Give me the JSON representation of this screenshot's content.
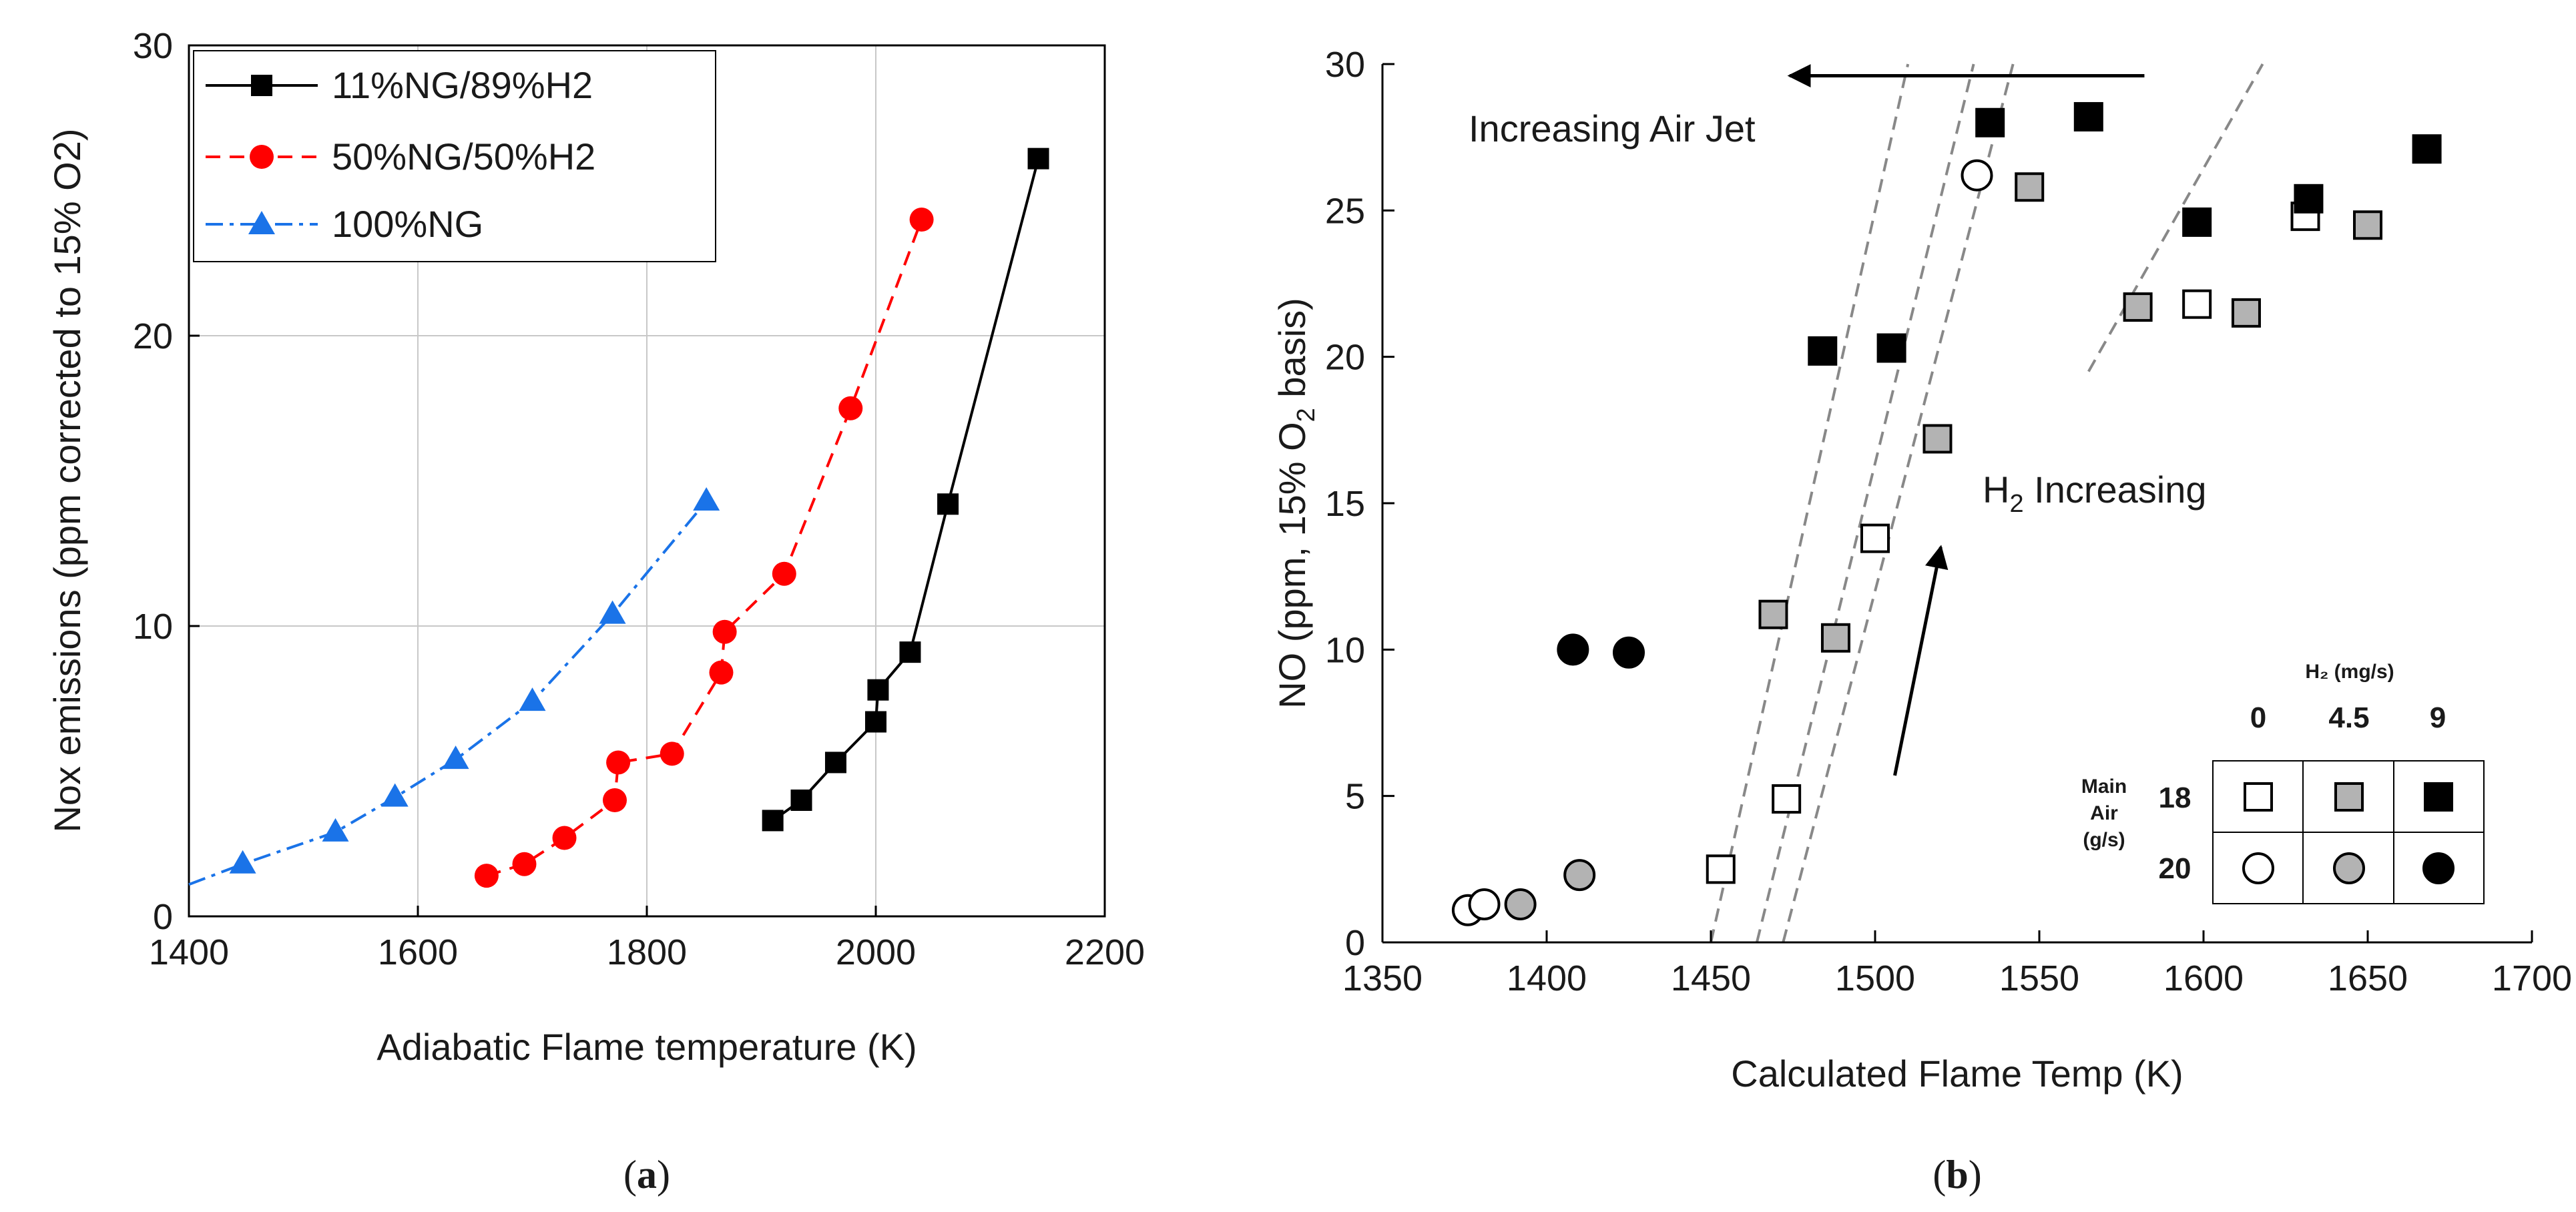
{
  "chart_data": [
    {
      "type": "line",
      "panel": "(a)",
      "xlabel": "Adiabatic Flame temperature (K)",
      "ylabel": "Nox emissions (ppm corrected to 15% O2)",
      "xlim": [
        1400,
        2200
      ],
      "ylim": [
        0,
        30
      ],
      "xticks": [
        1400,
        1600,
        1800,
        2000,
        2200
      ],
      "yticks": [
        0,
        10,
        20,
        30
      ],
      "grid": true,
      "legend_position": "top-left",
      "series": [
        {
          "name": "11%NG/89%H2",
          "color": "#000000",
          "marker": "square",
          "line": "solid",
          "points": [
            [
              1910,
              3.3
            ],
            [
              1935,
              4.0
            ],
            [
              1965,
              5.3
            ],
            [
              2000,
              6.7
            ],
            [
              2002,
              7.8
            ],
            [
              2030,
              9.1
            ],
            [
              2063,
              14.2
            ],
            [
              2142,
              26.1
            ]
          ]
        },
        {
          "name": "50%NG/50%H2",
          "color": "#ff0000",
          "marker": "circle",
          "line": "dashed",
          "points": [
            [
              1660,
              1.4
            ],
            [
              1693,
              1.8
            ],
            [
              1728,
              2.7
            ],
            [
              1772,
              4.0
            ],
            [
              1775,
              5.3
            ],
            [
              1822,
              5.6
            ],
            [
              1865,
              8.4
            ],
            [
              1868,
              9.8
            ],
            [
              1920,
              11.8
            ],
            [
              1978,
              17.5
            ],
            [
              2040,
              24.0
            ]
          ]
        },
        {
          "name": "100%NG",
          "color": "#1a73e8",
          "marker": "triangle",
          "line": "dashdot",
          "curve_start": [
            1400,
            1.1
          ],
          "points": [
            [
              1447,
              1.8
            ],
            [
              1528,
              2.9
            ],
            [
              1580,
              4.1
            ],
            [
              1633,
              5.4
            ],
            [
              1700,
              7.4
            ],
            [
              1770,
              10.4
            ],
            [
              1852,
              14.3
            ]
          ]
        }
      ]
    },
    {
      "type": "scatter",
      "panel": "(b)",
      "xlabel": "Calculated Flame Temp (K)",
      "ylabel_main": "NO (ppm, 15% O",
      "ylabel_sub": "2",
      "ylabel_tail": " basis)",
      "xlim": [
        1350,
        1700
      ],
      "ylim": [
        0,
        30
      ],
      "xticks": [
        1350,
        1400,
        1450,
        1500,
        1550,
        1600,
        1650,
        1700
      ],
      "yticks": [
        0,
        5,
        10,
        15,
        20,
        25,
        30
      ],
      "grid": false,
      "points": [
        {
          "x": 1376,
          "y": 1.1,
          "marker": "circle",
          "fill": "white"
        },
        {
          "x": 1381,
          "y": 1.3,
          "marker": "circle",
          "fill": "white"
        },
        {
          "x": 1392,
          "y": 1.3,
          "marker": "circle",
          "fill": "gray"
        },
        {
          "x": 1410,
          "y": 2.3,
          "marker": "circle",
          "fill": "gray"
        },
        {
          "x": 1408,
          "y": 10.0,
          "marker": "circle",
          "fill": "black"
        },
        {
          "x": 1425,
          "y": 9.9,
          "marker": "circle",
          "fill": "black"
        },
        {
          "x": 1531,
          "y": 26.2,
          "marker": "circle",
          "fill": "white"
        },
        {
          "x": 1453,
          "y": 2.5,
          "marker": "square",
          "fill": "white"
        },
        {
          "x": 1473,
          "y": 4.9,
          "marker": "square",
          "fill": "white"
        },
        {
          "x": 1500,
          "y": 13.8,
          "marker": "square",
          "fill": "white"
        },
        {
          "x": 1598,
          "y": 21.8,
          "marker": "square",
          "fill": "white"
        },
        {
          "x": 1631,
          "y": 24.8,
          "marker": "square",
          "fill": "white"
        },
        {
          "x": 1469,
          "y": 11.2,
          "marker": "square",
          "fill": "gray"
        },
        {
          "x": 1488,
          "y": 10.4,
          "marker": "square",
          "fill": "gray"
        },
        {
          "x": 1519,
          "y": 17.2,
          "marker": "square",
          "fill": "gray"
        },
        {
          "x": 1547,
          "y": 25.8,
          "marker": "square",
          "fill": "gray"
        },
        {
          "x": 1580,
          "y": 21.7,
          "marker": "square",
          "fill": "gray"
        },
        {
          "x": 1613,
          "y": 21.5,
          "marker": "square",
          "fill": "gray"
        },
        {
          "x": 1650,
          "y": 24.5,
          "marker": "square",
          "fill": "gray"
        },
        {
          "x": 1484,
          "y": 20.2,
          "marker": "square",
          "fill": "black"
        },
        {
          "x": 1505,
          "y": 20.3,
          "marker": "square",
          "fill": "black"
        },
        {
          "x": 1535,
          "y": 28.0,
          "marker": "square",
          "fill": "black"
        },
        {
          "x": 1565,
          "y": 28.2,
          "marker": "square",
          "fill": "black"
        },
        {
          "x": 1598,
          "y": 24.6,
          "marker": "square",
          "fill": "black"
        },
        {
          "x": 1632,
          "y": 25.4,
          "marker": "square",
          "fill": "black"
        },
        {
          "x": 1668,
          "y": 27.1,
          "marker": "square",
          "fill": "black"
        }
      ],
      "trend_lines": [
        {
          "from": [
            1450,
            0
          ],
          "to": [
            1510,
            30
          ]
        },
        {
          "from": [
            1464,
            0
          ],
          "to": [
            1530,
            30
          ]
        },
        {
          "from": [
            1472,
            0
          ],
          "to": [
            1542,
            30
          ]
        },
        {
          "from": [
            1565,
            19.5
          ],
          "to": [
            1618,
            30
          ]
        }
      ],
      "annotations": {
        "air_jet": "Increasing Air Jet",
        "h2_main": "H",
        "h2_sub": "2",
        "h2_tail": " Increasing",
        "air_arrow": {
          "from": [
            1582,
            29.6
          ],
          "to": [
            1474,
            29.6
          ]
        },
        "h2_arrow": {
          "from": [
            1506,
            5.7
          ],
          "to": [
            1520,
            13.5
          ]
        }
      },
      "inset_legend": {
        "title": "H₂ (mg/s)",
        "columns": [
          "0",
          "4.5",
          "9"
        ],
        "row_header": [
          "Main",
          "Air",
          "(g/s)"
        ],
        "rows": [
          {
            "label": "18",
            "marker": "square"
          },
          {
            "label": "20",
            "marker": "circle"
          }
        ],
        "fills": [
          "white",
          "gray",
          "black"
        ]
      }
    }
  ],
  "panel_labels": {
    "a_open": "(",
    "a_letter": "a",
    "a_close": ")",
    "b_open": "(",
    "b_letter": "b",
    "b_close": ")"
  },
  "colors": {
    "white_fill": "#ffffff",
    "gray_fill": "#b3b3b3",
    "black_fill": "#000000",
    "grid": "#c8c8c8",
    "trend": "#888888"
  }
}
